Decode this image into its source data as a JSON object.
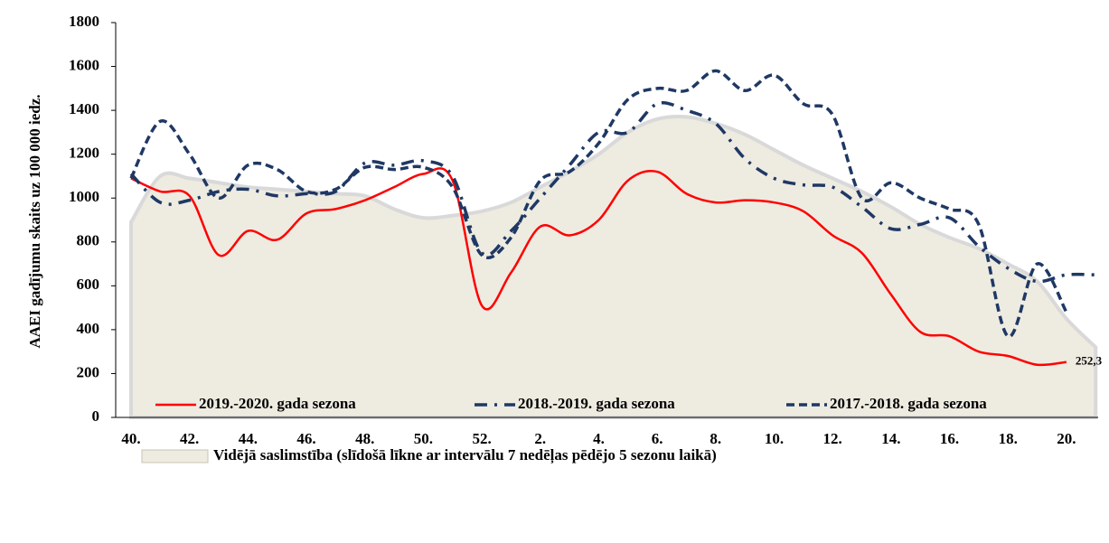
{
  "chart_data": {
    "type": "line",
    "y_label": "AAEI gadījumu skaits uz 100 000 iedz.",
    "categories": [
      "40.",
      null,
      "42.",
      null,
      "44.",
      null,
      "46.",
      null,
      "48.",
      null,
      "50.",
      null,
      "52.",
      null,
      "2.",
      null,
      "4.",
      null,
      "6.",
      null,
      "8.",
      null,
      "10.",
      null,
      "12.",
      null,
      "14.",
      null,
      "16.",
      null,
      "18.",
      null,
      "20.",
      null
    ],
    "ylim": [
      0,
      1800
    ],
    "yticks": [
      0,
      200,
      400,
      600,
      800,
      1000,
      1200,
      1400,
      1600,
      1800
    ],
    "series": [
      {
        "name": "Vidējā saslimstība (slīdošā līkne ar intervālu 7 nedēļas pēdējo 5 sezonu laikā)",
        "color": "#eeebe1",
        "style": "area",
        "values": [
          890,
          1100,
          1090,
          1070,
          1050,
          1040,
          1030,
          1020,
          1010,
          950,
          910,
          920,
          940,
          980,
          1050,
          1120,
          1200,
          1300,
          1360,
          1370,
          1340,
          1290,
          1220,
          1150,
          1090,
          1030,
          960,
          880,
          820,
          770,
          700,
          620,
          450,
          320
        ]
      },
      {
        "name": "2019.-2020. gada sezona",
        "color": "#ff0000",
        "style": "solid",
        "values": [
          1090,
          1030,
          1010,
          740,
          850,
          810,
          930,
          950,
          990,
          1050,
          1110,
          1080,
          510,
          660,
          870,
          830,
          900,
          1080,
          1120,
          1020,
          980,
          990,
          980,
          940,
          830,
          750,
          560,
          390,
          370,
          300,
          280,
          240,
          252.3,
          null
        ],
        "value_labels": [
          null,
          null,
          null,
          null,
          null,
          null,
          null,
          null,
          null,
          null,
          null,
          null,
          null,
          null,
          null,
          null,
          null,
          null,
          null,
          null,
          null,
          null,
          null,
          null,
          null,
          null,
          null,
          null,
          null,
          null,
          null,
          null,
          "252,3",
          null
        ]
      },
      {
        "name": "2018.-2019. gada sezona",
        "color": "#1f3864",
        "style": "dashdot",
        "values": [
          1110,
          980,
          990,
          1030,
          1040,
          1010,
          1020,
          1030,
          1160,
          1150,
          1170,
          1100,
          750,
          850,
          1000,
          1150,
          1300,
          1300,
          1430,
          1400,
          1340,
          1180,
          1090,
          1060,
          1050,
          960,
          860,
          880,
          910,
          780,
          680,
          620,
          650,
          650
        ]
      },
      {
        "name": "2017.-2018. gada sezona",
        "color": "#1f3864",
        "style": "dash",
        "values": [
          1090,
          1350,
          1200,
          1000,
          1150,
          1130,
          1030,
          1040,
          1140,
          1130,
          1140,
          1050,
          740,
          820,
          1080,
          1120,
          1250,
          1450,
          1500,
          1490,
          1580,
          1490,
          1560,
          1430,
          1380,
          1000,
          1070,
          1000,
          950,
          880,
          370,
          700,
          480,
          null
        ]
      }
    ]
  }
}
